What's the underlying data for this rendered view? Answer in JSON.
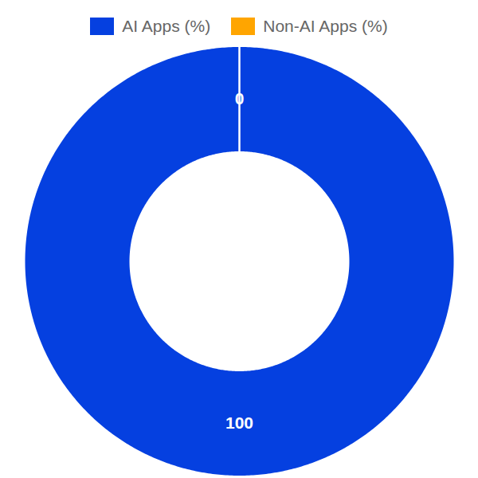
{
  "chart_data": {
    "type": "donut",
    "categories": [
      "AI Apps (%)",
      "Non-AI Apps (%)"
    ],
    "values": [
      100,
      0
    ],
    "colors": [
      "#0540e0",
      "#ffa500"
    ],
    "data_labels": true,
    "legend": "top"
  }
}
